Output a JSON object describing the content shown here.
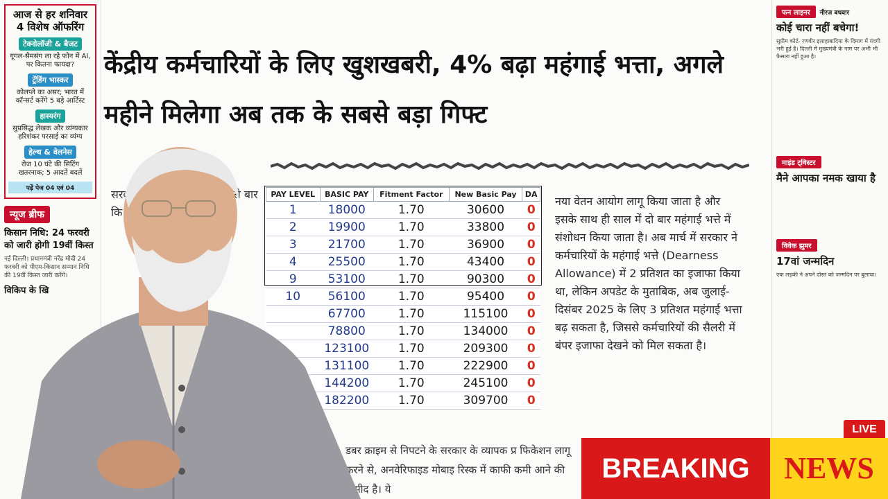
{
  "left_column": {
    "offer_title": "आज से हर शनिवार 4 विशेष ऑफरिंग",
    "items": [
      {
        "tag": "टेक्नोलॉजी & बैजट",
        "text": "गूगल-सैमसंग ला रहे फोन में AI, पर कितना फायदा?"
      },
      {
        "tag": "ट्रेंडिंग भास्कर",
        "text": "कोलप्ले का असर; भारत में कॉन्सर्ट करेंगे 5 बड़े आर्टिस्ट"
      },
      {
        "tag": "हास्यरंग",
        "text": "सुप्रसिद्ध लेखक और व्यंग्यकार हरिशंकर परसाई का व्यंग्य"
      },
      {
        "tag": "हेल्थ & वेलनेस",
        "text": "रोज 10 घंटे की सिटिंग खतरनाक; 5 आदतें बदलें"
      }
    ],
    "offer_footer": "पढ़ें पेज 04 एवं 04",
    "brief_label": "न्यूज ब्रीफ",
    "brief_title": "किसान निधि: 24 फरवरी को जारी होगी 19वीं किस्त",
    "brief_body": "नई दिल्ली। प्रधानमंत्री नरेंद्र मोदी 24 फरवरी को पीएम-किसान सम्मान निधि की 19वीं किस्त जारी करेंगे।",
    "brief_title2": "विकिप के खि"
  },
  "headline": "केंद्रीय कर्मचारियों के लिए खुशखबरी, 4% बढ़ा महंगाई भत्ता, अगले महीने मिलेगा अब तक के सबसे बड़ा गिफ्ट",
  "article_left": "सरकार कर्मचारि साल लागू इससे बार कि",
  "table": {
    "headers": [
      "PAY LEVEL",
      "BASIC PAY",
      "Fitment Factor",
      "New Basic Pay",
      "DA"
    ],
    "rows": [
      [
        "1",
        "18000",
        "1.70",
        "30600",
        "0"
      ],
      [
        "2",
        "19900",
        "1.70",
        "33800",
        "0"
      ],
      [
        "3",
        "21700",
        "1.70",
        "36900",
        "0"
      ],
      [
        "4",
        "25500",
        "1.70",
        "43400",
        "0"
      ],
      [
        "9",
        "53100",
        "1.70",
        "90300",
        "0"
      ],
      [
        "10",
        "56100",
        "1.70",
        "95400",
        "0"
      ],
      [
        "",
        "67700",
        "1.70",
        "115100",
        "0"
      ],
      [
        "",
        "78800",
        "1.70",
        "134000",
        "0"
      ],
      [
        "",
        "123100",
        "1.70",
        "209300",
        "0"
      ],
      [
        "",
        "131100",
        "1.70",
        "222900",
        "0"
      ],
      [
        "",
        "144200",
        "1.70",
        "245100",
        "0"
      ],
      [
        "",
        "182200",
        "1.70",
        "309700",
        "0"
      ]
    ]
  },
  "article_right": "नया वेतन आयोग लागू किया जाता है और इसके साथ ही साल में दो बार महंगाई भत्ते में संशोधन किया जाता है। अब मार्च में सरकार ने कर्मचारियों के महंगाई भत्ते (Dearness Allowance) में 2 प्रतिशत का इजाफा किया था, लेकिन अपडेट के मुताबिक, अब जुलाई-दिसंबर 2025 के लिए 3 प्रतिशत महंगाई भत्ता बढ़ सकता है, जिससे कर्मचारियों की सैलरी में बंपर इजाफा देखने को मिल सकता है।",
  "article_bottom": "डबर क्राइम से निपटने के सरकार के व्यापक प्र फिकेशन लागू करने से, अनवेरिफाइड मोबाइ रिस्क में काफी कमी आने की उम्मीद है। ये",
  "right_column": {
    "tag1": "फन लाइनर",
    "author1": "नीरज बधवार",
    "title1": "कोई चारा नहीं बचेगा!",
    "body1": "सुप्रीम कोर्ट- रणवीर इलाहाबादिया के दिमाग में गंदगी भरी हुई है। दिल्ली में मुख्यमंत्री के नाम पर अभी भी फैसला नहीं हुआ है।",
    "tag2": "माइंड ट्विस्टर",
    "title2": "मैने आपका नमक खाया है",
    "tag3": "विवेक झुमर",
    "title3": "17वां जन्मदिन",
    "body3": "एक लड़की ने अपने दोस्त को जन्मदिन पर बुलाया।"
  },
  "breaking": {
    "word1": "BREAKING",
    "word2": "NEWS",
    "live": "LIVE"
  },
  "colors": {
    "accent_red": "#d91919",
    "accent_yellow": "#ffd21c",
    "da_red": "#d7301f",
    "value_blue": "#223a8c"
  }
}
